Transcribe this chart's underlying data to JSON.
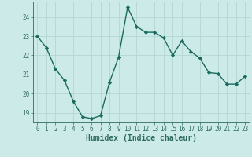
{
  "x": [
    0,
    1,
    2,
    3,
    4,
    5,
    6,
    7,
    8,
    9,
    10,
    11,
    12,
    13,
    14,
    15,
    16,
    17,
    18,
    19,
    20,
    21,
    22,
    23
  ],
  "y": [
    23.0,
    22.4,
    21.3,
    20.7,
    19.6,
    18.8,
    18.7,
    18.85,
    20.6,
    21.9,
    24.5,
    23.5,
    23.2,
    23.2,
    22.9,
    22.0,
    22.75,
    22.2,
    21.85,
    21.1,
    21.05,
    20.5,
    20.5,
    20.9
  ],
  "line_color": "#1a6b5e",
  "marker": "D",
  "marker_size": 2.2,
  "bg_color": "#cceae8",
  "grid_color_major": "#b5d5d2",
  "grid_color_minor": "#c8e5e3",
  "xlabel": "Humidex (Indice chaleur)",
  "ylim": [
    18.5,
    24.8
  ],
  "xlim": [
    -0.5,
    23.5
  ],
  "yticks": [
    19,
    20,
    21,
    22,
    23,
    24
  ],
  "xticks": [
    0,
    1,
    2,
    3,
    4,
    5,
    6,
    7,
    8,
    9,
    10,
    11,
    12,
    13,
    14,
    15,
    16,
    17,
    18,
    19,
    20,
    21,
    22,
    23
  ],
  "tick_fontsize": 5.5,
  "xlabel_fontsize": 7.0,
  "linewidth": 1.0
}
